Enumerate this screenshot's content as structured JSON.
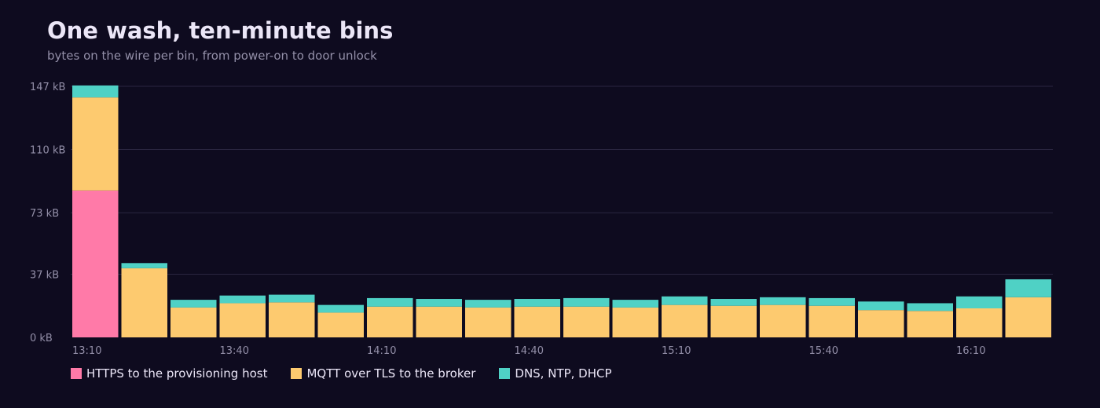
{
  "chart_data": {
    "type": "bar",
    "stacked": true,
    "title": "One wash, ten-minute bins",
    "subtitle": "bytes on the wire per bin, from power-on to door unlock",
    "xlabel": "",
    "ylabel": "",
    "y_unit": "kB",
    "ylim": [
      0,
      147
    ],
    "yticks": [
      0,
      37,
      73,
      110,
      147
    ],
    "grid": true,
    "legend_position": "bottom-left",
    "categories": [
      "13:10",
      "13:20",
      "13:30",
      "13:40",
      "13:50",
      "14:00",
      "14:10",
      "14:20",
      "14:30",
      "14:40",
      "14:50",
      "15:00",
      "15:10",
      "15:20",
      "15:30",
      "15:40",
      "15:50",
      "16:00",
      "16:10",
      "16:20"
    ],
    "x_tick_labels": [
      "13:10",
      "13:40",
      "14:10",
      "14:40",
      "15:10",
      "15:40",
      "16:10"
    ],
    "series": [
      {
        "name": "HTTPS to the provisioning host",
        "color": "#ff7aa8",
        "values": [
          86,
          0,
          0,
          0,
          0,
          0,
          0,
          0,
          0,
          0,
          0,
          0,
          0,
          0,
          0,
          0,
          0,
          0,
          0,
          0
        ]
      },
      {
        "name": "MQTT over TLS to the broker",
        "color": "#fdca6f",
        "values": [
          54.5,
          40.5,
          17.5,
          20,
          20.5,
          14.5,
          18,
          18,
          17.5,
          18,
          18,
          17.5,
          19,
          18.5,
          19,
          18.5,
          16,
          15.5,
          17,
          23.5
        ]
      },
      {
        "name": "DNS, NTP, DHCP",
        "color": "#4fd1c5",
        "values": [
          7,
          3,
          4.5,
          4.5,
          4.5,
          4.5,
          5,
          4.5,
          4.5,
          4.5,
          5,
          4.5,
          5,
          4,
          4.5,
          4.5,
          5,
          4.5,
          7,
          10.5
        ]
      }
    ]
  }
}
